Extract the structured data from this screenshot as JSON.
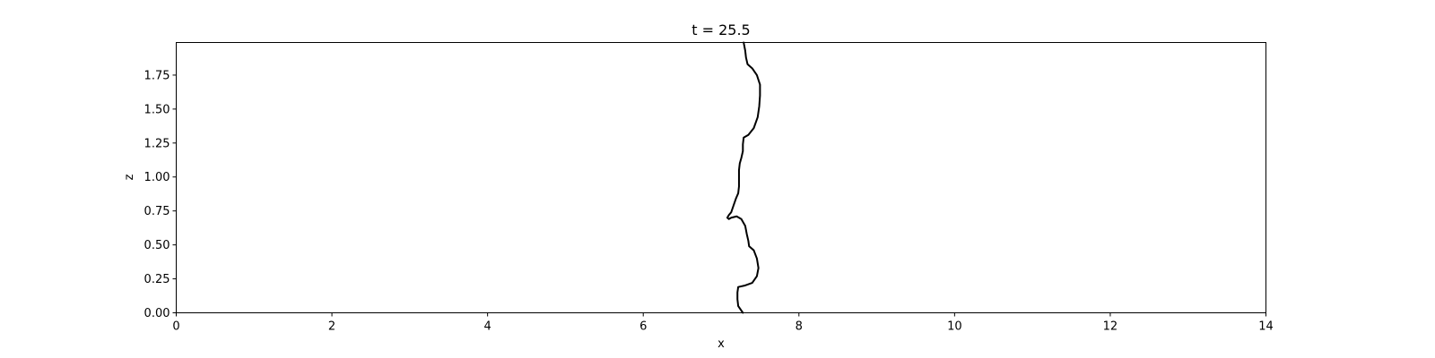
{
  "chart_data": {
    "type": "line",
    "title": "t = 25.5",
    "xlabel": "x",
    "ylabel": "z",
    "xlim": [
      0,
      14
    ],
    "ylim": [
      0,
      1.99
    ],
    "xticks": [
      0,
      2,
      4,
      6,
      8,
      10,
      12,
      14
    ],
    "xtick_labels": [
      "0",
      "2",
      "4",
      "6",
      "8",
      "10",
      "12",
      "14"
    ],
    "yticks": [
      0,
      0.25,
      0.5,
      0.75,
      1.0,
      1.25,
      1.5,
      1.75
    ],
    "ytick_labels": [
      "0.00",
      "0.25",
      "0.50",
      "0.75",
      "1.00",
      "1.25",
      "1.50",
      "1.75"
    ],
    "grid": false,
    "series": [
      {
        "color": "#000000",
        "points": [
          [
            7.28,
            0.0
          ],
          [
            7.22,
            0.05
          ],
          [
            7.21,
            0.1
          ],
          [
            7.21,
            0.15
          ],
          [
            7.22,
            0.19
          ],
          [
            7.3,
            0.2
          ],
          [
            7.4,
            0.22
          ],
          [
            7.46,
            0.27
          ],
          [
            7.48,
            0.33
          ],
          [
            7.46,
            0.4
          ],
          [
            7.42,
            0.46
          ],
          [
            7.36,
            0.49
          ],
          [
            7.35,
            0.53
          ],
          [
            7.33,
            0.58
          ],
          [
            7.31,
            0.64
          ],
          [
            7.26,
            0.69
          ],
          [
            7.2,
            0.71
          ],
          [
            7.13,
            0.7
          ],
          [
            7.1,
            0.69
          ],
          [
            7.08,
            0.7
          ],
          [
            7.1,
            0.72
          ],
          [
            7.13,
            0.74
          ],
          [
            7.16,
            0.79
          ],
          [
            7.19,
            0.84
          ],
          [
            7.22,
            0.88
          ],
          [
            7.23,
            0.93
          ],
          [
            7.23,
            0.99
          ],
          [
            7.23,
            1.05
          ],
          [
            7.24,
            1.1
          ],
          [
            7.26,
            1.14
          ],
          [
            7.28,
            1.19
          ],
          [
            7.28,
            1.24
          ],
          [
            7.29,
            1.29
          ],
          [
            7.35,
            1.31
          ],
          [
            7.42,
            1.36
          ],
          [
            7.47,
            1.44
          ],
          [
            7.49,
            1.52
          ],
          [
            7.5,
            1.6
          ],
          [
            7.5,
            1.68
          ],
          [
            7.46,
            1.75
          ],
          [
            7.4,
            1.8
          ],
          [
            7.34,
            1.83
          ],
          [
            7.32,
            1.88
          ],
          [
            7.31,
            1.93
          ],
          [
            7.29,
            1.99
          ]
        ]
      }
    ]
  }
}
